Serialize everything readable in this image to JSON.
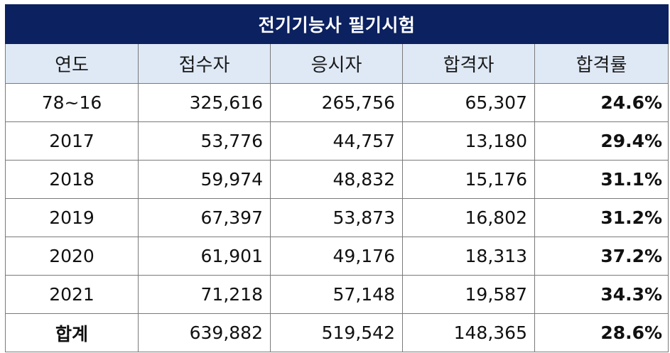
{
  "table": {
    "title": "전기기능사 필기시험",
    "headers": [
      "연도",
      "접수자",
      "응시자",
      "합격자",
      "합격률"
    ],
    "rows": [
      {
        "year": "78~16",
        "applicants": "325,616",
        "examinees": "265,756",
        "passers": "65,307",
        "rate": "24.6%"
      },
      {
        "year": "2017",
        "applicants": "53,776",
        "examinees": "44,757",
        "passers": "13,180",
        "rate": "29.4%"
      },
      {
        "year": "2018",
        "applicants": "59,974",
        "examinees": "48,832",
        "passers": "15,176",
        "rate": "31.1%"
      },
      {
        "year": "2019",
        "applicants": "67,397",
        "examinees": "53,873",
        "passers": "16,802",
        "rate": "31.2%"
      },
      {
        "year": "2020",
        "applicants": "61,901",
        "examinees": "49,176",
        "passers": "18,313",
        "rate": "37.2%"
      },
      {
        "year": "2021",
        "applicants": "71,218",
        "examinees": "57,148",
        "passers": "19,587",
        "rate": "34.3%"
      }
    ],
    "total": {
      "year": "합계",
      "applicants": "639,882",
      "examinees": "519,542",
      "passers": "148,365",
      "rate": "28.6%"
    }
  },
  "colors": {
    "title_bg": "#0b2160",
    "header_bg": "#dfe9f6",
    "border": "#7a7a7a"
  }
}
